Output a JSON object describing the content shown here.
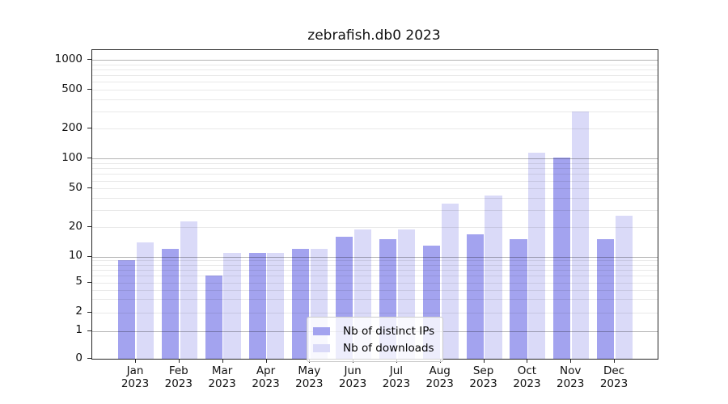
{
  "title": "zebrafish.db0 2023",
  "chart_data": {
    "type": "bar",
    "title": "zebrafish.db0 2023",
    "categories": [
      "Jan 2023",
      "Feb 2023",
      "Mar 2023",
      "Apr 2023",
      "May 2023",
      "Jun 2023",
      "Jul 2023",
      "Aug 2023",
      "Sep 2023",
      "Oct 2023",
      "Nov 2023",
      "Dec 2023"
    ],
    "series": [
      {
        "name": "Nb of distinct IPs",
        "color": "#a3a3ef",
        "values": [
          9,
          12,
          6,
          11,
          12,
          16,
          15,
          13,
          17,
          15,
          102,
          15
        ]
      },
      {
        "name": "Nb of downloads",
        "color": "#dadaf8",
        "values": [
          14,
          23,
          11,
          11,
          12,
          19,
          19,
          35,
          42,
          114,
          298,
          26
        ]
      }
    ],
    "xlabel": "",
    "ylabel": "",
    "yscale": "log-like",
    "y_ticks": [
      0,
      1,
      2,
      5,
      10,
      20,
      50,
      100,
      200,
      500,
      1000
    ],
    "ylim": [
      0,
      1000
    ],
    "grid": true,
    "legend_position": "lower-center-inside"
  },
  "colors": {
    "bar_distinct_ips": "#a3a3ef",
    "bar_downloads": "#dadaf8",
    "major_gridline": "#b4b4b4",
    "minor_gridline": "#e9e9e9",
    "axis": "#262626",
    "background": "#ffffff"
  }
}
